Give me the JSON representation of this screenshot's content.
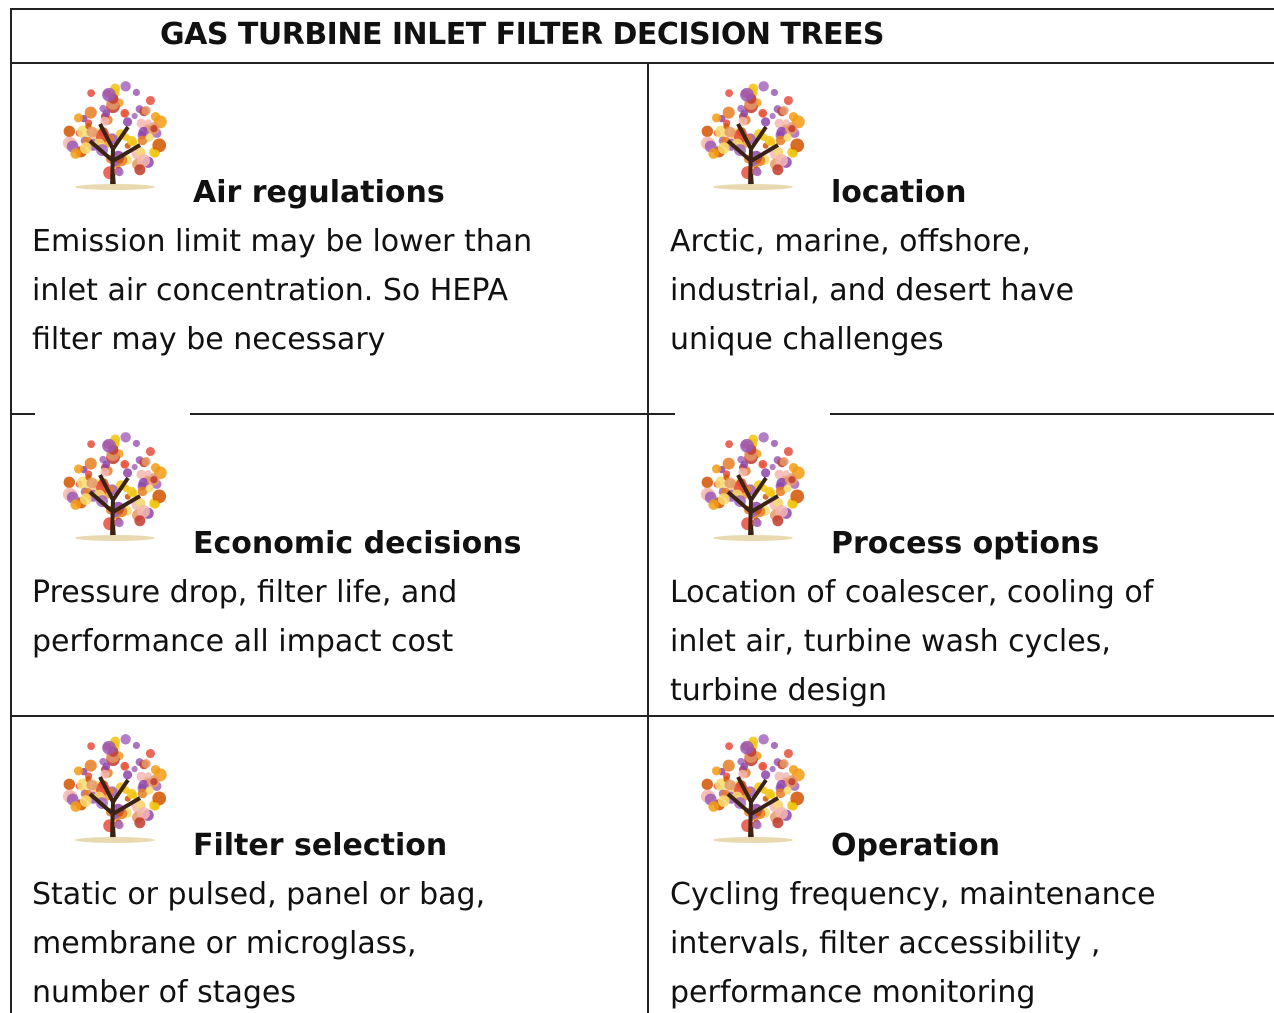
{
  "title": "GAS TURBINE INLET FILTER DECISION TREES",
  "cells": [
    {
      "heading": "Air regulations",
      "lines": [
        "Emission limit may be lower than",
        "inlet air concentration. So HEPA",
        "filter may be necessary"
      ]
    },
    {
      "heading": "location",
      "lines": [
        "Arctic, marine, offshore,",
        "industrial, and desert have",
        "unique challenges"
      ]
    },
    {
      "heading": "Economic decisions",
      "lines": [
        "Pressure drop, filter life, and",
        "performance all impact cost"
      ]
    },
    {
      "heading": "Process options",
      "lines": [
        "Location of coalescer, cooling of",
        "inlet air, turbine wash cycles,",
        "turbine design"
      ]
    },
    {
      "heading": "Filter selection",
      "lines": [
        "Static or pulsed,  panel or bag,",
        "membrane or microglass,",
        "number of stages"
      ]
    },
    {
      "heading": "Operation",
      "lines": [
        "Cycling frequency, maintenance",
        "intervals, filter accessibility ,",
        "performance monitoring"
      ]
    }
  ]
}
